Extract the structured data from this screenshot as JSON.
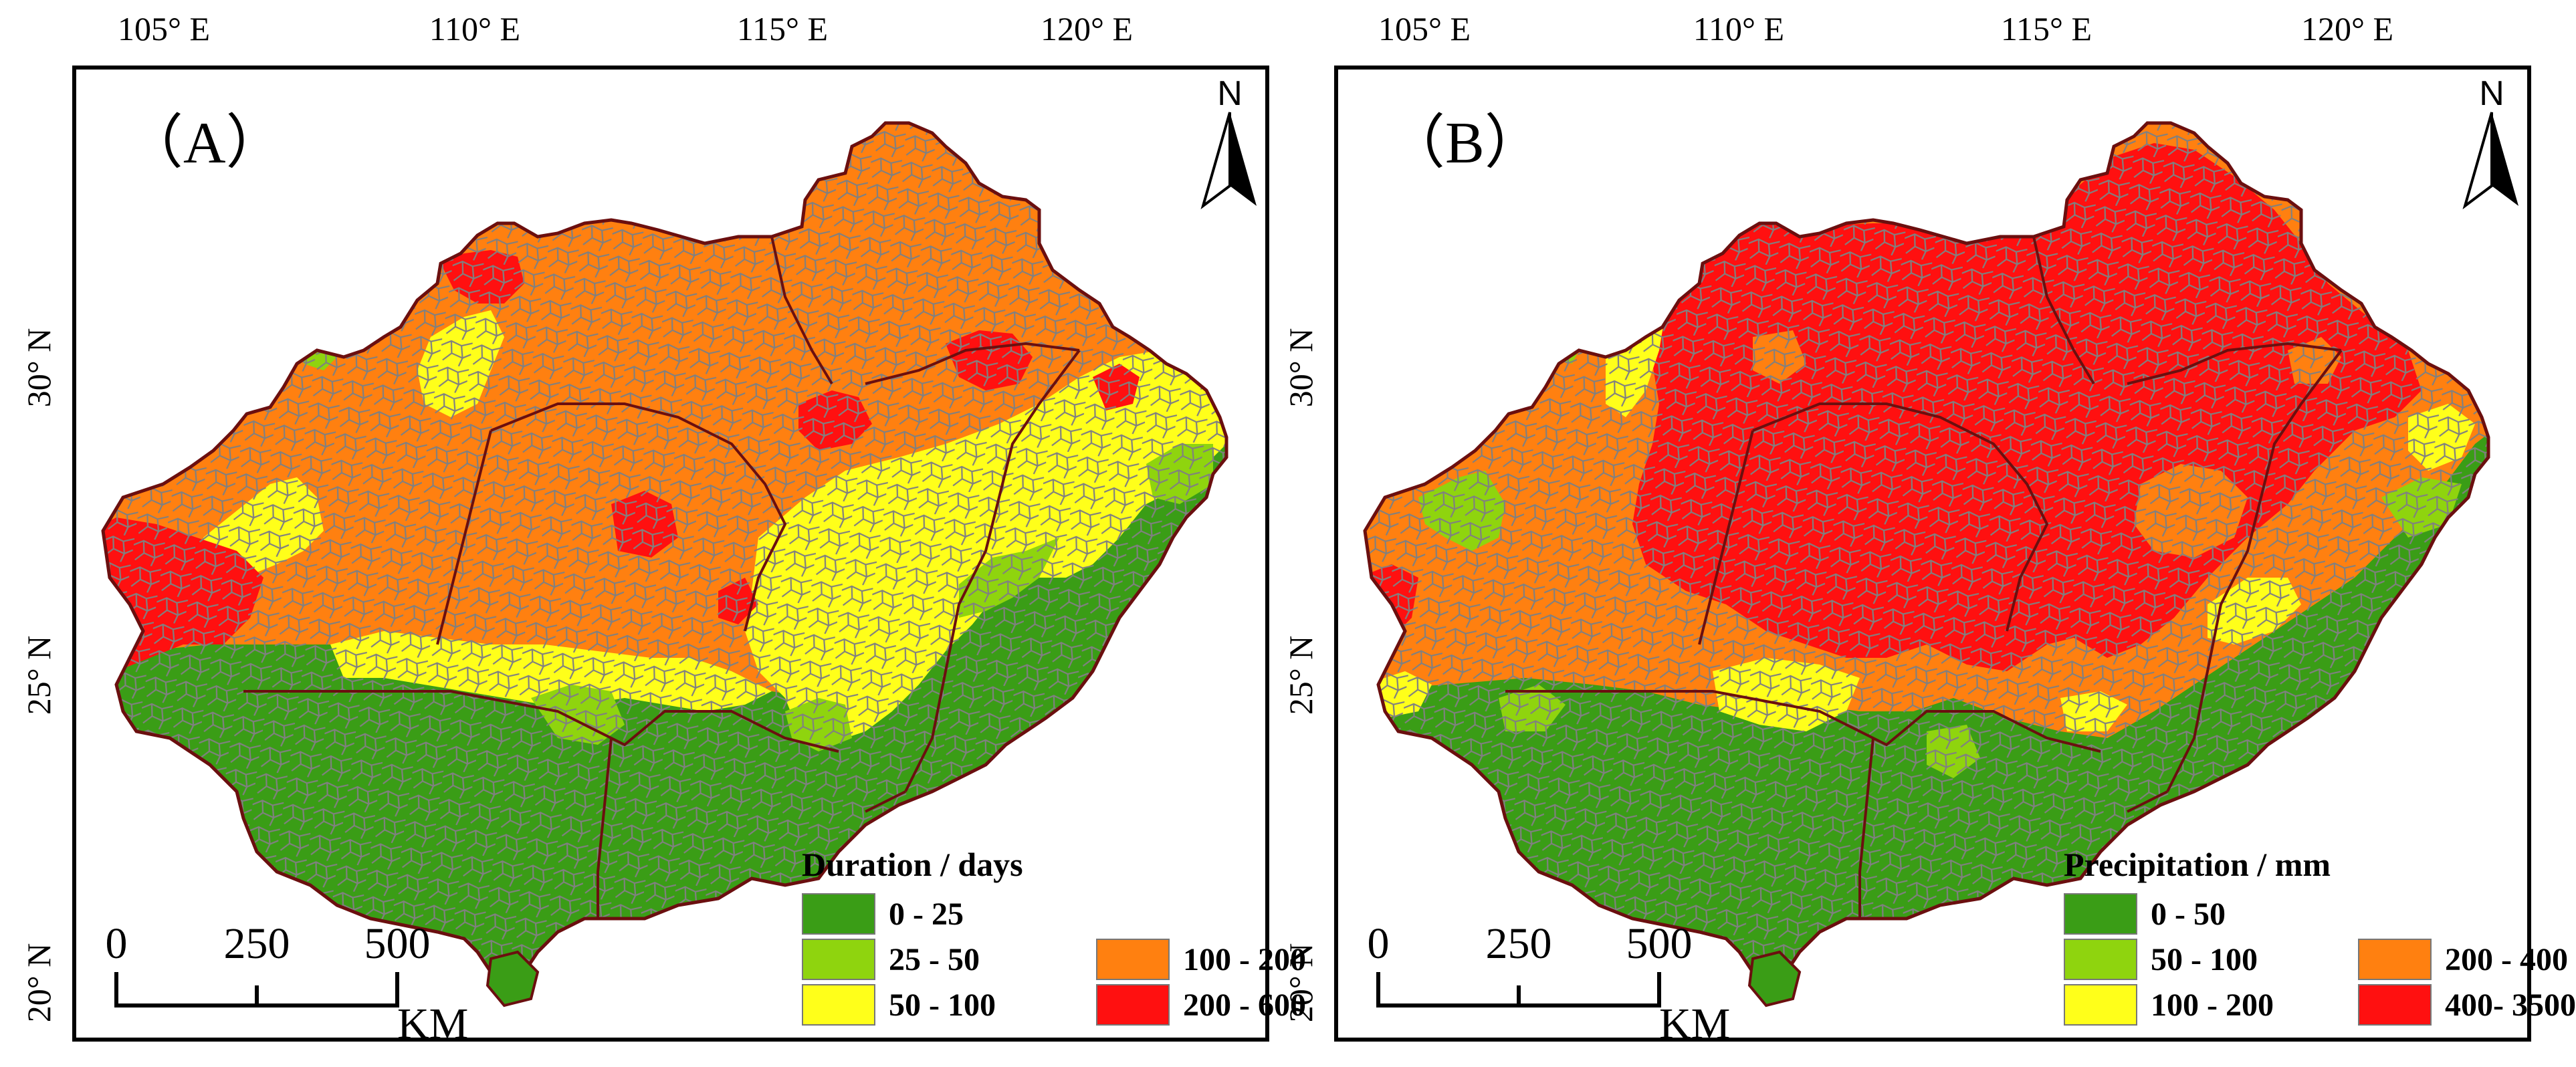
{
  "longitude_labels": {
    "a": [
      "105° E",
      "110° E",
      "115° E",
      "120° E"
    ],
    "b": [
      "105° E",
      "110° E",
      "115° E",
      "120° E"
    ]
  },
  "latitude_labels": {
    "a": [
      "30° N",
      "25° N",
      "20° N"
    ],
    "b": [
      "30° N",
      "25° N",
      "20° N"
    ]
  },
  "panels": {
    "a": {
      "label": "（A）",
      "north": "N",
      "scale": {
        "ticks": [
          "0",
          "250",
          "500"
        ],
        "unit": "KM"
      },
      "legend": {
        "title": "Duration / days",
        "items": [
          {
            "label": "0 - 25",
            "color": "#3a9d16"
          },
          {
            "label": "25 - 50",
            "color": "#8fd40e"
          },
          {
            "label": "50 - 100",
            "color": "#ffff1a"
          },
          {
            "label": "100 - 200",
            "color": "#ff8010"
          },
          {
            "label": "200 - 600",
            "color": "#ff1010"
          }
        ]
      }
    },
    "b": {
      "label": "（B）",
      "north": "N",
      "scale": {
        "ticks": [
          "0",
          "250",
          "500"
        ],
        "unit": "KM"
      },
      "legend": {
        "title": "Precipitation / mm",
        "items": [
          {
            "label": "0 - 50",
            "color": "#3a9d16"
          },
          {
            "label": "50 - 100",
            "color": "#8fd40e"
          },
          {
            "label": "100 - 200",
            "color": "#ffff1a"
          },
          {
            "label": "200 - 400",
            "color": "#ff8010"
          },
          {
            "label": "400- 3500",
            "color": "#ff1010"
          }
        ]
      }
    }
  },
  "colors": {
    "green_dark": "#3a9d16",
    "green_light": "#8fd40e",
    "yellow": "#ffff1a",
    "orange": "#ff8010",
    "red": "#ff1010",
    "county_border": "#808080",
    "province_border": "#6b0f0f"
  }
}
